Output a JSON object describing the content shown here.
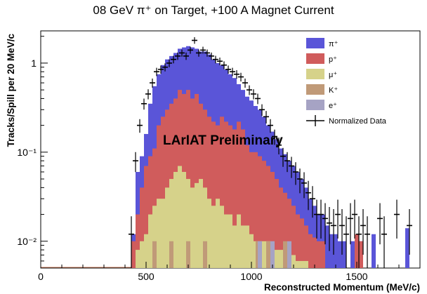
{
  "chart_data": {
    "type": "bar",
    "title": "08 GeV π⁺ on Target, +100 A Magnet Current",
    "xlabel": "Reconstructed Momentum (MeV/c)",
    "ylabel": "Tracks/Spill per 20 MeV/c",
    "annotation": "LArIAT Preliminary",
    "xlim": [
      0,
      1800
    ],
    "ylim": [
      0.005,
      2.3
    ],
    "y_scale": "log",
    "bin_width": 20,
    "x_ticks": [
      {
        "value": 0,
        "label": "0"
      },
      {
        "value": 500,
        "label": "500"
      },
      {
        "value": 1000,
        "label": "1000"
      },
      {
        "value": 1500,
        "label": "1500"
      }
    ],
    "y_ticks": [
      {
        "value": 1,
        "label": "1"
      },
      {
        "value": 0.1,
        "label": "10⁻¹"
      },
      {
        "value": 0.01,
        "label": "10⁻²"
      }
    ],
    "legend_position": "top-right",
    "legend": [
      {
        "label": "π⁺",
        "color": "#5a55d8",
        "kind": "fill"
      },
      {
        "label": "p⁺",
        "color": "#d05c5c",
        "kind": "fill"
      },
      {
        "label": "μ⁺",
        "color": "#d6d28a",
        "kind": "fill"
      },
      {
        "label": "K⁺",
        "color": "#c09a78",
        "kind": "fill"
      },
      {
        "label": "e⁺",
        "color": "#a6a3c4",
        "kind": "fill"
      },
      {
        "label": "Normalized Data",
        "color": "#000000",
        "kind": "marker"
      }
    ],
    "series": [
      {
        "name": "π⁺",
        "color": "#5a55d8",
        "points": [
          [
            440,
            0.012
          ],
          [
            460,
            0.06
          ],
          [
            480,
            0.09
          ],
          [
            500,
            0.16
          ],
          [
            520,
            0.35
          ],
          [
            540,
            0.55
          ],
          [
            560,
            0.75
          ],
          [
            580,
            0.95
          ],
          [
            600,
            1.1
          ],
          [
            620,
            1.2
          ],
          [
            640,
            1.3
          ],
          [
            660,
            1.45
          ],
          [
            680,
            1.5
          ],
          [
            700,
            1.55
          ],
          [
            720,
            1.5
          ],
          [
            740,
            1.45
          ],
          [
            760,
            1.35
          ],
          [
            780,
            1.35
          ],
          [
            800,
            1.25
          ],
          [
            820,
            1.1
          ],
          [
            840,
            1.0
          ],
          [
            860,
            0.95
          ],
          [
            880,
            0.85
          ],
          [
            900,
            0.75
          ],
          [
            920,
            0.68
          ],
          [
            940,
            0.58
          ],
          [
            960,
            0.5
          ],
          [
            980,
            0.42
          ],
          [
            1000,
            0.38
          ],
          [
            1020,
            0.33
          ],
          [
            1040,
            0.3
          ],
          [
            1060,
            0.25
          ],
          [
            1080,
            0.2
          ],
          [
            1100,
            0.17
          ],
          [
            1120,
            0.14
          ],
          [
            1140,
            0.11
          ],
          [
            1160,
            0.095
          ],
          [
            1180,
            0.08
          ],
          [
            1200,
            0.07
          ],
          [
            1220,
            0.06
          ],
          [
            1240,
            0.05
          ],
          [
            1260,
            0.04
          ],
          [
            1280,
            0.03
          ],
          [
            1300,
            0.025
          ],
          [
            1320,
            0.02
          ],
          [
            1340,
            0.02
          ],
          [
            1360,
            0.015
          ],
          [
            1380,
            0.012
          ],
          [
            1400,
            0.012
          ],
          [
            1420,
            0.01
          ],
          [
            1440,
            0.01
          ],
          [
            1480,
            0.01
          ],
          [
            1500,
            0.01
          ],
          [
            1520,
            0.01
          ],
          [
            1580,
            0.012
          ],
          [
            1740,
            0.014
          ]
        ]
      },
      {
        "name": "p⁺",
        "color": "#d05c5c",
        "points": [
          [
            440,
            0.01
          ],
          [
            460,
            0.02
          ],
          [
            480,
            0.04
          ],
          [
            500,
            0.07
          ],
          [
            520,
            0.09
          ],
          [
            540,
            0.11
          ],
          [
            560,
            0.2
          ],
          [
            580,
            0.25
          ],
          [
            600,
            0.3
          ],
          [
            620,
            0.35
          ],
          [
            640,
            0.4
          ],
          [
            660,
            0.5
          ],
          [
            680,
            0.45
          ],
          [
            700,
            0.5
          ],
          [
            720,
            0.4
          ],
          [
            740,
            0.45
          ],
          [
            760,
            0.35
          ],
          [
            780,
            0.3
          ],
          [
            800,
            0.25
          ],
          [
            820,
            0.22
          ],
          [
            840,
            0.2
          ],
          [
            860,
            0.25
          ],
          [
            880,
            0.22
          ],
          [
            900,
            0.2
          ],
          [
            920,
            0.18
          ],
          [
            940,
            0.22
          ],
          [
            960,
            0.18
          ],
          [
            980,
            0.12
          ],
          [
            1000,
            0.1
          ],
          [
            1020,
            0.1
          ],
          [
            1040,
            0.09
          ],
          [
            1060,
            0.08
          ],
          [
            1080,
            0.07
          ],
          [
            1100,
            0.06
          ],
          [
            1120,
            0.05
          ],
          [
            1140,
            0.04
          ],
          [
            1160,
            0.035
          ],
          [
            1180,
            0.03
          ],
          [
            1200,
            0.025
          ],
          [
            1220,
            0.02
          ],
          [
            1240,
            0.018
          ],
          [
            1260,
            0.015
          ],
          [
            1280,
            0.012
          ],
          [
            1300,
            0.011
          ],
          [
            1320,
            0.01
          ],
          [
            1340,
            0.01
          ],
          [
            1500,
            0.012
          ],
          [
            1520,
            0.01
          ]
        ]
      },
      {
        "name": "μ⁺",
        "color": "#d6d28a",
        "points": [
          [
            460,
            0.008
          ],
          [
            480,
            0.01
          ],
          [
            500,
            0.012
          ],
          [
            520,
            0.02
          ],
          [
            540,
            0.025
          ],
          [
            560,
            0.03
          ],
          [
            580,
            0.03
          ],
          [
            600,
            0.04
          ],
          [
            620,
            0.05
          ],
          [
            640,
            0.06
          ],
          [
            660,
            0.07
          ],
          [
            680,
            0.06
          ],
          [
            700,
            0.05
          ],
          [
            720,
            0.04
          ],
          [
            740,
            0.045
          ],
          [
            760,
            0.05
          ],
          [
            780,
            0.04
          ],
          [
            800,
            0.03
          ],
          [
            820,
            0.025
          ],
          [
            840,
            0.03
          ],
          [
            860,
            0.025
          ],
          [
            880,
            0.02
          ],
          [
            900,
            0.02
          ],
          [
            920,
            0.015
          ],
          [
            940,
            0.02
          ],
          [
            960,
            0.015
          ],
          [
            980,
            0.015
          ],
          [
            1000,
            0.012
          ],
          [
            1020,
            0.01
          ],
          [
            1040,
            0.01
          ],
          [
            1060,
            0.01
          ],
          [
            1080,
            0.01
          ],
          [
            1100,
            0.009
          ],
          [
            1120,
            0.008
          ],
          [
            1140,
            0.008
          ],
          [
            1160,
            0.007
          ],
          [
            1180,
            0.007
          ],
          [
            1200,
            0.007
          ],
          [
            1220,
            0.006
          ],
          [
            1240,
            0.006
          ],
          [
            1260,
            0.006
          ]
        ]
      },
      {
        "name": "K⁺",
        "color": "#c09a78",
        "points": [
          [
            540,
            0.01
          ],
          [
            620,
            0.01
          ],
          [
            700,
            0.01
          ],
          [
            780,
            0.01
          ],
          [
            1030,
            0.01
          ],
          [
            1080,
            0.01
          ],
          [
            1160,
            0.01
          ]
        ]
      },
      {
        "name": "e⁺",
        "color": "#a6a3c4",
        "points": [
          [
            1040,
            0.01
          ],
          [
            1100,
            0.01
          ],
          [
            1180,
            0.01
          ]
        ]
      }
    ],
    "data_points": [
      [
        430,
        0.012
      ],
      [
        450,
        0.08
      ],
      [
        470,
        0.2
      ],
      [
        490,
        0.35
      ],
      [
        510,
        0.45
      ],
      [
        530,
        0.6
      ],
      [
        550,
        0.8
      ],
      [
        570,
        0.85
      ],
      [
        590,
        0.9
      ],
      [
        610,
        1.0
      ],
      [
        630,
        1.1
      ],
      [
        650,
        1.2
      ],
      [
        670,
        1.3
      ],
      [
        690,
        1.2
      ],
      [
        710,
        1.4
      ],
      [
        730,
        1.8
      ],
      [
        750,
        1.3
      ],
      [
        770,
        1.4
      ],
      [
        790,
        1.3
      ],
      [
        810,
        1.2
      ],
      [
        830,
        1.1
      ],
      [
        850,
        1.05
      ],
      [
        870,
        0.95
      ],
      [
        890,
        0.85
      ],
      [
        910,
        0.8
      ],
      [
        930,
        0.75
      ],
      [
        950,
        0.7
      ],
      [
        970,
        0.6
      ],
      [
        990,
        0.5
      ],
      [
        1010,
        0.45
      ],
      [
        1030,
        0.4
      ],
      [
        1050,
        0.3
      ],
      [
        1070,
        0.25
      ],
      [
        1090,
        0.2
      ],
      [
        1110,
        0.15
      ],
      [
        1130,
        0.12
      ],
      [
        1150,
        0.09
      ],
      [
        1170,
        0.08
      ],
      [
        1190,
        0.07
      ],
      [
        1210,
        0.06
      ],
      [
        1230,
        0.05
      ],
      [
        1250,
        0.045
      ],
      [
        1270,
        0.035
      ],
      [
        1290,
        0.03
      ],
      [
        1310,
        0.02
      ],
      [
        1330,
        0.02
      ],
      [
        1350,
        0.018
      ],
      [
        1370,
        0.016
      ],
      [
        1390,
        0.015
      ],
      [
        1410,
        0.02
      ],
      [
        1430,
        0.015
      ],
      [
        1450,
        0.012
      ],
      [
        1470,
        0.018
      ],
      [
        1490,
        0.02
      ],
      [
        1510,
        0.012
      ],
      [
        1530,
        0.015
      ],
      [
        1550,
        0.012
      ],
      [
        1610,
        0.018
      ],
      [
        1630,
        0.012
      ],
      [
        1690,
        0.02
      ],
      [
        1750,
        0.015
      ]
    ]
  }
}
